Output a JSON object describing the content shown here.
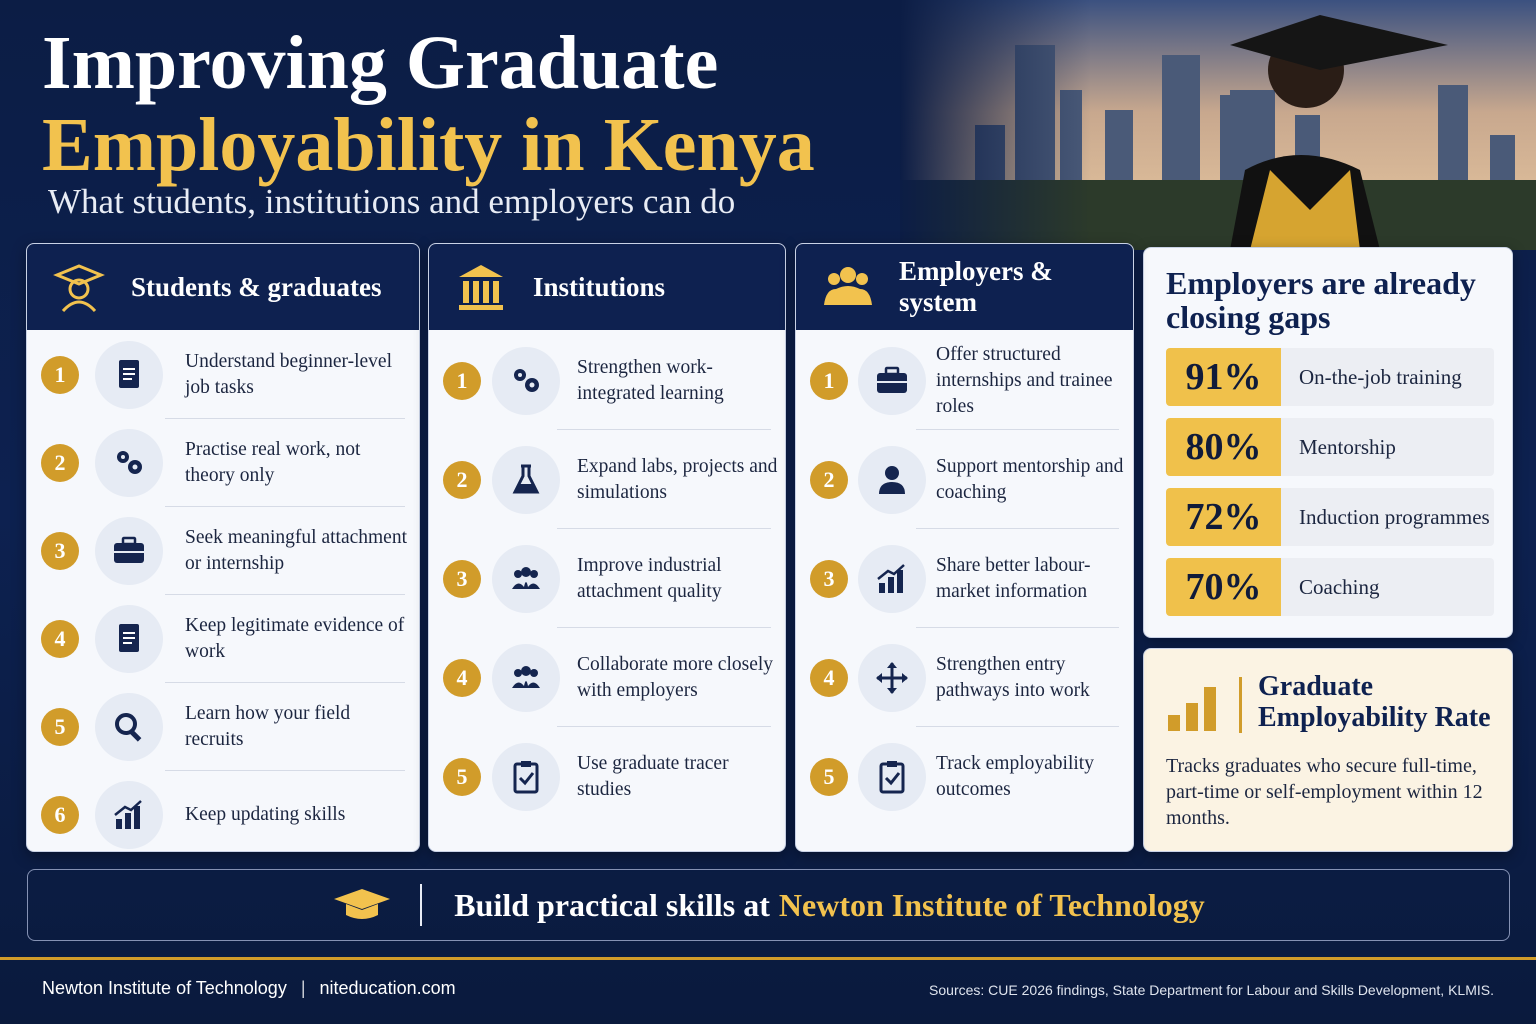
{
  "header": {
    "title_line1": "Improving Graduate",
    "title_line2": "Employability in Kenya",
    "subtitle": "What students, institutions and employers can do"
  },
  "columns": [
    {
      "title": "Students & graduates",
      "items": [
        {
          "number": 1,
          "text": "Understand beginner-level job tasks"
        },
        {
          "number": 2,
          "text": "Practise real work, not theory only"
        },
        {
          "number": 3,
          "text": "Seek meaningful attachment or internship"
        },
        {
          "number": 4,
          "text": "Keep legitimate evidence of work"
        },
        {
          "number": 5,
          "text": "Learn how your field recruits"
        },
        {
          "number": 6,
          "text": "Keep updating skills"
        }
      ]
    },
    {
      "title": "Institutions",
      "items": [
        {
          "number": 1,
          "text": "Strengthen work-integrated learning"
        },
        {
          "number": 2,
          "text": "Expand labs, projects and simulations"
        },
        {
          "number": 3,
          "text": "Improve industrial attachment quality"
        },
        {
          "number": 4,
          "text": "Collaborate more closely with employers"
        },
        {
          "number": 5,
          "text": "Use graduate tracer studies"
        }
      ]
    },
    {
      "title": "Employers & system",
      "items": [
        {
          "number": 1,
          "text": "Offer structured internships and trainee roles"
        },
        {
          "number": 2,
          "text": "Support mentorship and coaching"
        },
        {
          "number": 3,
          "text": "Share better labour-market information"
        },
        {
          "number": 4,
          "text": "Strengthen entry pathways into work"
        },
        {
          "number": 5,
          "text": "Track employability outcomes"
        }
      ]
    }
  ],
  "stats_panel": {
    "title": "Employers are already closing gaps",
    "stats": [
      {
        "value": "91%",
        "label": "On-the-job training"
      },
      {
        "value": "80%",
        "label": "Mentorship"
      },
      {
        "value": "72%",
        "label": "Induction programmes"
      },
      {
        "value": "70%",
        "label": "Coaching"
      }
    ]
  },
  "rate_panel": {
    "title": "Graduate Employability Rate",
    "description": "Tracks graduates who secure full-time, part-time or self-employment within 12 months."
  },
  "banner": {
    "text": "Build practical skills at",
    "highlight": "Newton Institute of Technology"
  },
  "footer": {
    "organization": "Newton Institute of Technology",
    "website": "niteducation.com",
    "sources": "Sources: CUE 2026 findings, State Department for Labour and Skills Development,  KLMIS."
  }
}
